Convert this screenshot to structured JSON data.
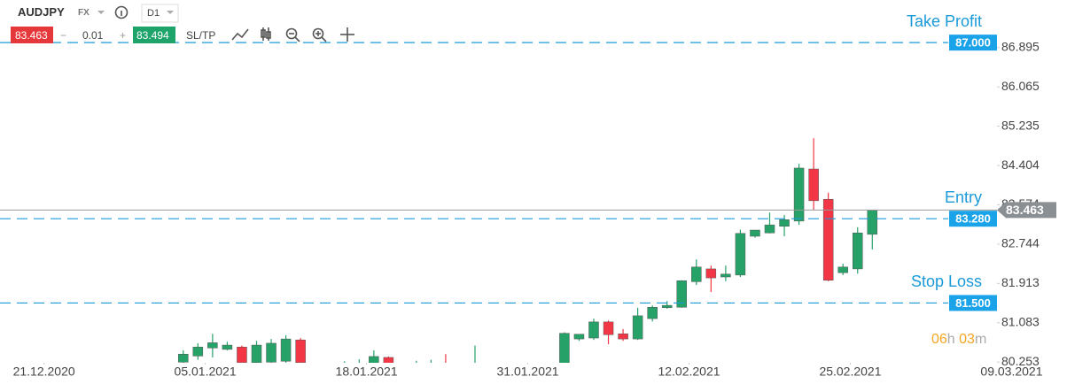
{
  "toolbar": {
    "symbol": "AUDJPY",
    "market": "FX",
    "timeframe": "D1",
    "bid": "83.463",
    "minus": "−",
    "lot": "0.01",
    "plus": "+",
    "ask": "83.494",
    "sltp": "SL/TP"
  },
  "countdown": {
    "hours": "06",
    "hours_unit": "h",
    "minutes": "03",
    "minutes_unit": "m"
  },
  "chart_data": {
    "type": "candlestick",
    "up_color": "#26a269",
    "down_color": "#f23645",
    "candles": {
      "x": [
        12.5,
        13.5,
        14.5,
        15.5,
        16.5,
        17.5,
        18.5,
        19.5,
        20.5,
        23.5,
        24.5,
        25.5,
        26.5,
        28.4,
        29.4,
        30.4,
        32.4,
        38.5,
        39.5,
        40.5,
        41.5,
        42.5,
        43.5,
        44.5,
        45.5,
        46.5,
        47.5,
        48.5,
        49.5,
        50.5,
        51.5,
        52.5,
        53.5,
        54.5,
        55.5,
        56.5,
        57.5,
        58.5,
        59.5
      ],
      "open": [
        80.25,
        80.38,
        80.55,
        80.52,
        80.57,
        80.24,
        80.25,
        80.27,
        80.72,
        80.0,
        80.0,
        80.05,
        80.35,
        80.0,
        80.0,
        80.2,
        80.0,
        79.9,
        80.74,
        80.76,
        81.1,
        80.85,
        80.74,
        81.17,
        81.4,
        81.41,
        81.95,
        82.22,
        82.05,
        82.09,
        82.91,
        82.98,
        83.12,
        83.23,
        84.33,
        83.69,
        82.14,
        82.22,
        82.95
      ],
      "high": [
        80.5,
        80.65,
        80.85,
        80.68,
        80.6,
        80.7,
        80.74,
        80.82,
        80.76,
        80.27,
        80.31,
        80.5,
        80.37,
        80.28,
        80.3,
        80.42,
        80.6,
        80.88,
        80.8,
        81.17,
        81.13,
        80.95,
        81.4,
        81.45,
        81.54,
        81.98,
        82.42,
        82.29,
        82.29,
        83.05,
        83.04,
        83.41,
        83.36,
        84.44,
        84.98,
        83.83,
        82.33,
        83.1,
        83.46
      ],
      "low": [
        80.2,
        80.3,
        80.35,
        80.5,
        80.2,
        80.2,
        80.2,
        80.24,
        80.2,
        79.9,
        79.9,
        79.9,
        79.9,
        79.9,
        79.9,
        79.9,
        79.9,
        79.8,
        80.7,
        80.72,
        80.63,
        80.7,
        80.72,
        81.11,
        81.38,
        81.4,
        81.88,
        81.73,
        81.96,
        82.05,
        82.88,
        82.97,
        82.91,
        83.15,
        83.47,
        81.96,
        82.09,
        82.12,
        82.63
      ],
      "close": [
        80.42,
        80.57,
        80.66,
        80.61,
        80.24,
        80.61,
        80.65,
        80.74,
        80.24,
        80.1,
        80.15,
        80.37,
        80.1,
        80.1,
        80.12,
        80.0,
        80.15,
        80.86,
        80.84,
        81.1,
        80.83,
        80.74,
        81.23,
        81.41,
        81.45,
        81.97,
        82.26,
        82.03,
        82.11,
        82.97,
        83.04,
        83.15,
        83.26,
        84.35,
        83.66,
        81.98,
        82.26,
        82.98,
        83.46
      ]
    },
    "levels": [
      {
        "name": "Take Profit",
        "value": 87,
        "value_label": "87.000"
      },
      {
        "name": "Entry",
        "value": 83.28,
        "value_label": "83.280"
      },
      {
        "name": "Stop Loss",
        "value": 81.5,
        "value_label": "81.500"
      }
    ],
    "last_price": {
      "value": 83.463,
      "label": "83.463"
    },
    "ylim": [
      80.2,
      87.9
    ],
    "yticks": [
      80.253,
      81.083,
      81.913,
      82.744,
      83.574,
      84.404,
      85.235,
      86.065,
      86.895
    ],
    "xlim": [
      0,
      70
    ],
    "xticks": [
      {
        "value": 3,
        "label": "21.12.2020"
      },
      {
        "value": 14,
        "label": "05.01.2021"
      },
      {
        "value": 25,
        "label": "18.01.2021"
      },
      {
        "value": 36,
        "label": "31.01.2021"
      },
      {
        "value": 47,
        "label": "12.02.2021"
      },
      {
        "value": 58,
        "label": "25.02.2021"
      },
      {
        "value": 69,
        "label": "09.03.2021"
      }
    ]
  }
}
